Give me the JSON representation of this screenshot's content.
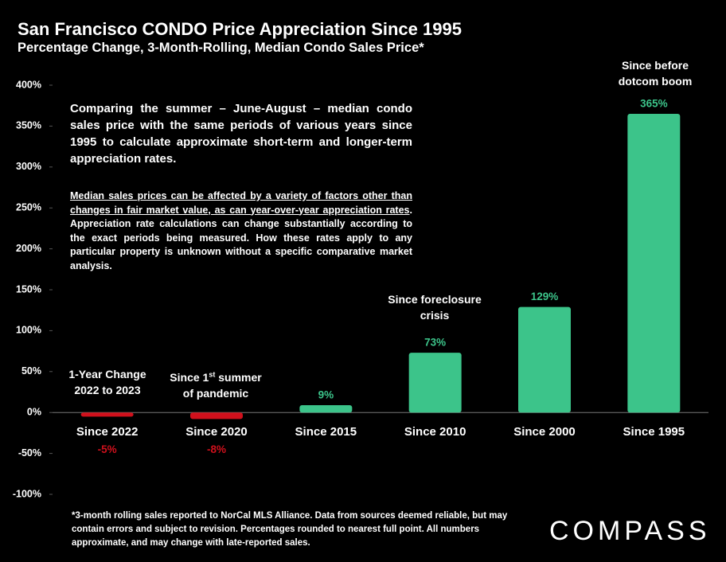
{
  "chart_data": {
    "type": "bar",
    "title": "San Francisco CONDO Price Appreciation Since 1995",
    "subtitle": "Percentage Change, 3-Month-Rolling, Median Condo Sales Price*",
    "categories": [
      "Since 2022",
      "Since 2020",
      "Since 2015",
      "Since 2010",
      "Since 2000",
      "Since 1995"
    ],
    "values": [
      -5,
      -8,
      9,
      73,
      129,
      365
    ],
    "value_labels": [
      "-5%",
      "-8%",
      "9%",
      "73%",
      "129%",
      "365%"
    ],
    "colors": [
      "#d0101c",
      "#d0101c",
      "#3cc48a",
      "#3cc48a",
      "#3cc48a",
      "#3cc48a"
    ],
    "ylim": [
      -100,
      400
    ],
    "yticks": [
      {
        "value": -100,
        "label": "-100%"
      },
      {
        "value": -50,
        "label": "-50%"
      },
      {
        "value": 0,
        "label": "0%"
      },
      {
        "value": 50,
        "label": "50%"
      },
      {
        "value": 100,
        "label": "100%"
      },
      {
        "value": 150,
        "label": "150%"
      },
      {
        "value": 200,
        "label": "200%"
      },
      {
        "value": 250,
        "label": "250%"
      },
      {
        "value": 300,
        "label": "300%"
      },
      {
        "value": 350,
        "label": "350%"
      },
      {
        "value": 400,
        "label": "400%"
      }
    ],
    "annotations": {
      "one_year": "1-Year Change 2022 to 2023",
      "pandemic_start": "Since 1",
      "pandemic_sup": "st",
      "pandemic_end": " summer of pandemic",
      "foreclosure": "Since foreclosure crisis",
      "dotcom": "Since before dotcom boom"
    },
    "notes": {
      "paragraph_1": "Comparing the summer – June-August – median condo sales price with the same periods of various years since 1995 to calculate approximate short-term and longer-term appreciation rates.",
      "paragraph_2_underlined": "Median sales prices can be affected by a variety of factors other than changes in fair market value, as can year-over-year appreciation rates",
      "paragraph_2": ". Appreciation rate calculations can change substantially according to the exact periods being measured. How these rates apply to any particular property is unknown without a specific comparative market analysis."
    },
    "footnote": "*3-month rolling sales reported to NorCal MLS Alliance. Data from sources deemed reliable, but may contain errors and subject to revision. Percentages rounded to nearest full point. All numbers approximate, and may change with late-reported sales.",
    "logo": "COMPASS"
  }
}
